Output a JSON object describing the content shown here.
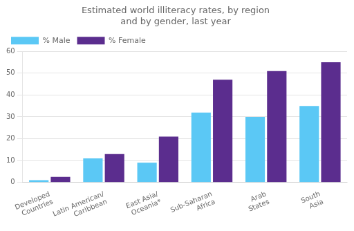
{
  "chart_data": {
    "type": "bar",
    "title": "Estimated world illiteracy rates, by region\nand by gender, last year",
    "categories": [
      "Developed\nCountries",
      "Latin American/\nCaribbean",
      "East Asia/\nOceania*",
      "Sub-Saharan\nAfrica",
      "Arab\nStates",
      "South\nAsia"
    ],
    "series": [
      {
        "name": "% Male",
        "color": "#5BC8F5",
        "values": [
          1,
          11,
          9,
          32,
          30,
          35
        ]
      },
      {
        "name": "% Female",
        "color": "#5B2D8E",
        "values": [
          2.5,
          13,
          21,
          47,
          51,
          55
        ]
      }
    ],
    "ylim": [
      0,
      60
    ],
    "yticks": [
      0,
      10,
      20,
      30,
      40,
      50,
      60
    ],
    "grid": true,
    "legend": "upper left"
  }
}
